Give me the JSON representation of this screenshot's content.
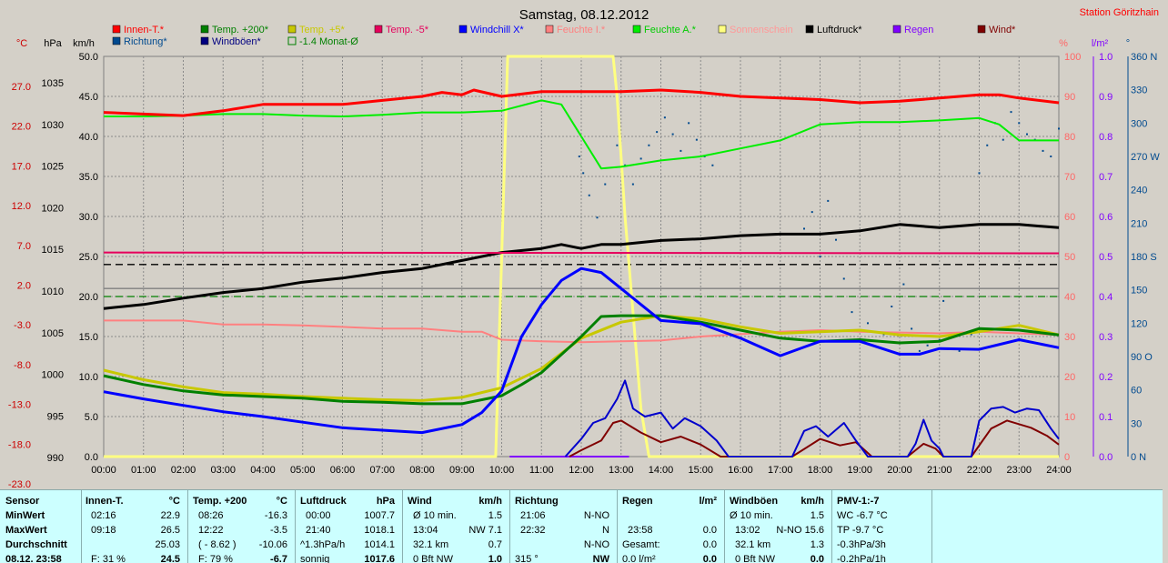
{
  "title": "Samstag, 08.12.2012",
  "station": "Station Göritzhain",
  "legend": [
    {
      "label": "Innen-T.*",
      "color": "#ff0000"
    },
    {
      "label": "Temp. +200*",
      "color": "#008000"
    },
    {
      "label": "Temp. +5*",
      "color": "#c8c800"
    },
    {
      "label": "Temp. -5*",
      "color": "#e6005c"
    },
    {
      "label": "Windchill X*",
      "color": "#0000ff"
    },
    {
      "label": "Feuchte I.*",
      "color": "#ff8080"
    },
    {
      "label": "Feuchte A.*",
      "color": "#00ee00"
    },
    {
      "label": "Sonnenschein",
      "color": "#ffff80"
    },
    {
      "label": "Luftdruck*",
      "color": "#000000"
    },
    {
      "label": "Regen",
      "color": "#8000ff"
    },
    {
      "label": "Wind*",
      "color": "#800000"
    },
    {
      "label": "Richtung*",
      "color": "#004a8f"
    },
    {
      "label": "Windböen*",
      "color": "#000080"
    },
    {
      "label": "-1.4 Monat-Ø",
      "color": "#008000"
    }
  ],
  "axis_units": {
    "temp": "°C",
    "hpa": "hPa",
    "kmh": "km/h",
    "pct": "%",
    "rain": "l/m²",
    "deg": "°"
  },
  "chart_data": {
    "type": "line",
    "x_ticks": [
      "00:00",
      "01:00",
      "02:00",
      "03:00",
      "04:00",
      "05:00",
      "06:00",
      "07:00",
      "08:00",
      "09:00",
      "10:00",
      "11:00",
      "12:00",
      "13:00",
      "14:00",
      "15:00",
      "16:00",
      "17:00",
      "18:00",
      "19:00",
      "20:00",
      "21:00",
      "22:00",
      "23:00",
      "24:00"
    ],
    "y_axes": {
      "temp_ticks": [
        "27.0",
        "22.0",
        "17.0",
        "12.0",
        "7.0",
        "2.0",
        "-3.0",
        "-8.0",
        "-13.0",
        "-18.0",
        "-23.0"
      ],
      "pressure_ticks": [
        "1035",
        "1030",
        "1025",
        "1020",
        "1015",
        "1010",
        "1005",
        "1000",
        "995",
        "990"
      ],
      "kmh_ticks": [
        "50.0",
        "45.0",
        "40.0",
        "35.0",
        "30.0",
        "25.0",
        "20.0",
        "15.0",
        "10.0",
        "5.0",
        "0.0"
      ],
      "kmh_range": [
        0,
        50
      ],
      "pct_ticks": [
        "100",
        "90",
        "80",
        "70",
        "60",
        "50",
        "40",
        "30",
        "20",
        "10",
        "0"
      ],
      "rain_ticks": [
        "1.0",
        "0.9",
        "0.8",
        "0.7",
        "0.6",
        "0.5",
        "0.4",
        "0.3",
        "0.2",
        "0.1",
        "0.0"
      ],
      "dir_ticks": [
        "360 N",
        "330",
        "300",
        "270 W",
        "240",
        "210",
        "180 S",
        "150",
        "120",
        "90 O",
        "60",
        "30",
        "0 N"
      ]
    },
    "ref_lines_kmh": [
      {
        "value": 24.0,
        "style": "dashed",
        "color": "#000000"
      },
      {
        "value": 20.0,
        "style": "dashed",
        "color": "#008000"
      },
      {
        "value": 21.0,
        "style": "solid",
        "color": "#808080"
      }
    ],
    "series": [
      {
        "name": "Innen-T.*",
        "color": "#ff0000",
        "width": 3,
        "x": [
          0,
          1,
          2,
          3,
          4,
          5,
          6,
          7,
          8,
          8.5,
          9,
          9.3,
          10,
          11,
          12,
          13,
          14,
          15,
          16,
          17,
          18,
          19,
          20,
          21,
          22,
          22.5,
          23,
          24
        ],
        "y": [
          43,
          42.8,
          42.6,
          43.2,
          44,
          44,
          44,
          44.5,
          45,
          45.5,
          45.2,
          45.8,
          45,
          45.6,
          45.6,
          45.6,
          45.8,
          45.5,
          45,
          44.8,
          44.6,
          44.2,
          44.4,
          44.8,
          45.2,
          45.2,
          44.8,
          44.2
        ]
      },
      {
        "name": "Feuchte A.*",
        "color": "#00ee00",
        "width": 2,
        "x": [
          0,
          1,
          2,
          3,
          4,
          5,
          6,
          7,
          8,
          9,
          10,
          11,
          11.5,
          12,
          12.5,
          13,
          14,
          15,
          16,
          17,
          18,
          19,
          20,
          21,
          22,
          22.5,
          23,
          24
        ],
        "y": [
          42.5,
          42.5,
          42.6,
          42.8,
          42.8,
          42.6,
          42.5,
          42.7,
          43,
          43,
          43.2,
          44.5,
          44,
          40,
          36,
          36.2,
          37,
          37.5,
          38.5,
          39.5,
          41.5,
          41.8,
          41.8,
          42,
          42.3,
          41.5,
          39.5,
          39.5
        ]
      },
      {
        "name": "Luftdruck*",
        "color": "#000000",
        "width": 3,
        "x": [
          0,
          1,
          2,
          3,
          4,
          5,
          6,
          7,
          8,
          9,
          10,
          11,
          11.5,
          12,
          12.5,
          13,
          14,
          15,
          16,
          17,
          18,
          19,
          20,
          21,
          22,
          23,
          24
        ],
        "y": [
          18.5,
          19,
          19.8,
          20.5,
          21,
          21.8,
          22.3,
          23,
          23.5,
          24.5,
          25.5,
          26,
          26.5,
          26,
          26.5,
          26.5,
          27,
          27.2,
          27.6,
          27.8,
          27.8,
          28.2,
          29,
          28.6,
          29,
          29,
          28.6
        ]
      },
      {
        "name": "Temp. -5*",
        "color": "#e6005c",
        "width": 2,
        "x": [
          0,
          24
        ],
        "y": [
          25.5,
          25.4
        ]
      },
      {
        "name": "Feuchte I.*",
        "color": "#ff8080",
        "width": 2,
        "x": [
          0,
          2,
          3,
          4,
          5,
          6,
          7,
          8,
          9,
          9.5,
          10,
          11,
          12,
          13,
          14,
          15,
          16,
          17,
          18,
          19,
          20,
          21,
          22,
          23,
          24
        ],
        "y": [
          17,
          17,
          16.5,
          16.5,
          16.4,
          16.2,
          16,
          16,
          15.6,
          15.6,
          14.6,
          14.4,
          14.3,
          14.4,
          14.5,
          15,
          15.3,
          15.6,
          15.8,
          15.6,
          15.5,
          15.4,
          15.6,
          15.4,
          15.2
        ]
      },
      {
        "name": "Temp. +5*",
        "color": "#c8c800",
        "width": 3,
        "x": [
          0,
          1,
          2,
          3,
          4,
          5,
          6,
          7,
          8,
          9,
          10,
          11,
          12,
          13,
          14,
          15,
          16,
          17,
          18,
          19,
          20,
          21,
          22,
          23,
          24
        ],
        "y": [
          10.8,
          9.6,
          8.7,
          8,
          7.8,
          7.5,
          7.3,
          7.1,
          7,
          7.4,
          8.6,
          11,
          14.8,
          16.8,
          17.6,
          17.2,
          16.2,
          15.4,
          15.6,
          15.8,
          15.2,
          15,
          15.6,
          16.4,
          15.2
        ]
      },
      {
        "name": "Temp. +200*",
        "color": "#008000",
        "width": 3,
        "x": [
          0,
          1,
          2,
          3,
          4,
          5,
          6,
          7,
          8,
          9,
          10,
          10.5,
          11,
          12,
          12.5,
          13,
          14,
          15,
          16,
          17,
          18,
          19,
          20,
          21,
          22,
          23,
          24
        ],
        "y": [
          10.1,
          9,
          8.2,
          7.7,
          7.5,
          7.3,
          6.9,
          6.8,
          6.6,
          6.6,
          7.6,
          9,
          10.5,
          15,
          17.5,
          17.6,
          17.6,
          16.8,
          15.8,
          14.8,
          14.4,
          14.6,
          14.2,
          14.4,
          16,
          15.8,
          15.2
        ]
      },
      {
        "name": "Windchill X*",
        "color": "#0000ff",
        "width": 3,
        "x": [
          0,
          1,
          2,
          3,
          4,
          5,
          6,
          7,
          8,
          9,
          9.5,
          10,
          10.5,
          11,
          11.5,
          12,
          12.5,
          13,
          13.5,
          14,
          15,
          16,
          17,
          18,
          19,
          20,
          20.5,
          21,
          22,
          23,
          24
        ],
        "y": [
          8.1,
          7.2,
          6.4,
          5.6,
          5,
          4.3,
          3.6,
          3.3,
          3,
          4,
          5.5,
          8.2,
          15,
          19,
          22,
          23.5,
          23,
          21,
          19,
          17,
          16.6,
          14.8,
          12.6,
          14.4,
          14.4,
          12.8,
          12.8,
          13.5,
          13.4,
          14.6,
          13.6
        ]
      },
      {
        "name": "Wind*",
        "color": "#800000",
        "width": 2,
        "x": [
          11.7,
          12,
          12.5,
          12.8,
          13,
          13.5,
          14,
          14.5,
          15,
          15.5,
          17.3,
          18,
          18.5,
          18.9,
          19.3,
          20.2,
          20.6,
          20.9,
          21.1,
          21.8,
          22.3,
          22.7,
          23.3,
          23.7,
          24
        ],
        "y": [
          0,
          0.8,
          2,
          4.2,
          4.5,
          3,
          1.8,
          2.5,
          1.5,
          0,
          0,
          2.2,
          1.4,
          1.8,
          0,
          0,
          1.6,
          1,
          0,
          0,
          3.5,
          4.5,
          3.6,
          2.6,
          1.5
        ]
      },
      {
        "name": "Windböen*",
        "color": "#0000cc",
        "width": 2,
        "x": [
          11.6,
          12,
          12.3,
          12.6,
          12.9,
          13.1,
          13.3,
          13.6,
          14,
          14.3,
          14.6,
          15,
          15.4,
          15.7,
          17.3,
          17.6,
          17.9,
          18.2,
          18.6,
          18.9,
          19.2,
          20.2,
          20.4,
          20.6,
          20.8,
          21,
          21.1,
          21.8,
          22,
          22.3,
          22.6,
          22.9,
          23.2,
          23.5,
          23.8,
          24
        ],
        "y": [
          0,
          2.2,
          4.2,
          4.8,
          7.2,
          9.5,
          6,
          5,
          5.5,
          3.5,
          4.8,
          3.8,
          2,
          0,
          0,
          3.2,
          3.8,
          2.5,
          4.2,
          2,
          0,
          0,
          1.6,
          4.6,
          2,
          1,
          0,
          0,
          4.5,
          6,
          6.2,
          5.5,
          6,
          5.8,
          3.5,
          2.2
        ]
      },
      {
        "name": "Sonnenschein",
        "color": "#ffff80",
        "width": 3,
        "x": [
          0,
          9.85,
          10.15,
          10.2,
          12.8,
          12.9,
          13.1,
          13.3,
          13.5,
          13.7,
          24
        ],
        "y": [
          0,
          0,
          50,
          50,
          50,
          45,
          30,
          18,
          6,
          0,
          0
        ]
      }
    ],
    "direction_points_deg": [
      [
        11.95,
        270
      ],
      [
        12.05,
        255
      ],
      [
        12.2,
        235
      ],
      [
        12.4,
        215
      ],
      [
        12.6,
        245
      ],
      [
        12.9,
        280
      ],
      [
        13.1,
        262
      ],
      [
        13.3,
        245
      ],
      [
        13.5,
        268
      ],
      [
        13.7,
        280
      ],
      [
        13.9,
        292
      ],
      [
        14.1,
        305
      ],
      [
        14.3,
        290
      ],
      [
        14.5,
        275
      ],
      [
        14.7,
        300
      ],
      [
        14.9,
        285
      ],
      [
        15.1,
        270
      ],
      [
        15.3,
        262
      ],
      [
        17.6,
        205
      ],
      [
        17.8,
        220
      ],
      [
        18.0,
        180
      ],
      [
        18.2,
        230
      ],
      [
        18.4,
        195
      ],
      [
        18.6,
        160
      ],
      [
        18.8,
        130
      ],
      [
        19.2,
        120
      ],
      [
        19.6,
        110
      ],
      [
        19.8,
        135
      ],
      [
        20.1,
        155
      ],
      [
        20.3,
        115
      ],
      [
        20.5,
        95
      ],
      [
        20.7,
        100
      ],
      [
        21.0,
        105
      ],
      [
        21.1,
        140
      ],
      [
        21.3,
        110
      ],
      [
        21.5,
        95
      ],
      [
        21.8,
        110
      ],
      [
        22.0,
        255
      ],
      [
        22.2,
        280
      ],
      [
        22.4,
        300
      ],
      [
        22.6,
        285
      ],
      [
        22.8,
        310
      ],
      [
        23.0,
        300
      ],
      [
        23.2,
        290
      ],
      [
        23.4,
        285
      ],
      [
        23.6,
        275
      ],
      [
        23.8,
        270
      ],
      [
        24.0,
        295
      ]
    ]
  },
  "stats": {
    "sensor": {
      "header": "Sensor",
      "min": "MinWert",
      "max": "MaxWert",
      "avg": "Durchschnitt",
      "now": "08.12. 23:58"
    },
    "innen": {
      "header": "Innen-T.",
      "unit": "°C",
      "min_t": "02:16",
      "min_v": "22.9",
      "max_t": "09:18",
      "max_v": "26.5",
      "avg_v": "25.03",
      "now_l": "F: 31 %",
      "now_v": "24.5"
    },
    "temp200": {
      "header": "Temp. +200",
      "unit": "°C",
      "min_t": "08:26",
      "min_v": "-16.3",
      "max_t": "12:22",
      "max_v": "-3.5",
      "avg_l": "( - 8.62 )",
      "avg_v": "-10.06",
      "now_l": "F: 79 %",
      "now_v": "-6.7"
    },
    "druck": {
      "header": "Luftdruck",
      "unit": "hPa",
      "min_t": "00:00",
      "min_v": "1007.7",
      "max_t": "21:40",
      "max_v": "1018.1",
      "avg_l": "^1.3hPa/h",
      "avg_v": "1014.1",
      "now_l": "sonnig",
      "now_v": "1017.6"
    },
    "wind": {
      "header": "Wind",
      "unit": "km/h",
      "min_t": "Ø 10 min.",
      "min_v": "1.5",
      "max_t": "13:04",
      "max_d": "NW 7.1",
      "avg_l": "32.1 km",
      "avg_v": "0.7",
      "now_l": "0 Bft NW",
      "now_v": "1.0"
    },
    "richtung": {
      "header": "Richtung",
      "min_t": "21:06",
      "min_v": "N-NO",
      "max_t": "22:32",
      "max_v": "N",
      "avg_v": "N-NO",
      "now_l": "315 °",
      "now_v": "NW"
    },
    "regen": {
      "header": "Regen",
      "unit": "l/m²",
      "max_t": "23:58",
      "max_v": "0.0",
      "avg_l": "Gesamt:",
      "avg_v": "0.0",
      "now_l": "0.0 l/m²",
      "now_v": "0.0"
    },
    "boeen": {
      "header": "Windböen",
      "unit": "km/h",
      "min_t": "Ø 10 min.",
      "min_v": "1.5",
      "max_t": "13:02",
      "max_d": "N-NO 15.6",
      "avg_l": "32.1 km",
      "avg_v": "1.3",
      "now_l": "0 Bft NW",
      "now_v": "0.0"
    },
    "pmv": {
      "header": "PMV-1:-7",
      "min": "WC -6.7 °C",
      "max": "TP -9.7 °C",
      "avg": "-0.3hPa/3h",
      "now": "-0.2hPa/1h"
    }
  }
}
